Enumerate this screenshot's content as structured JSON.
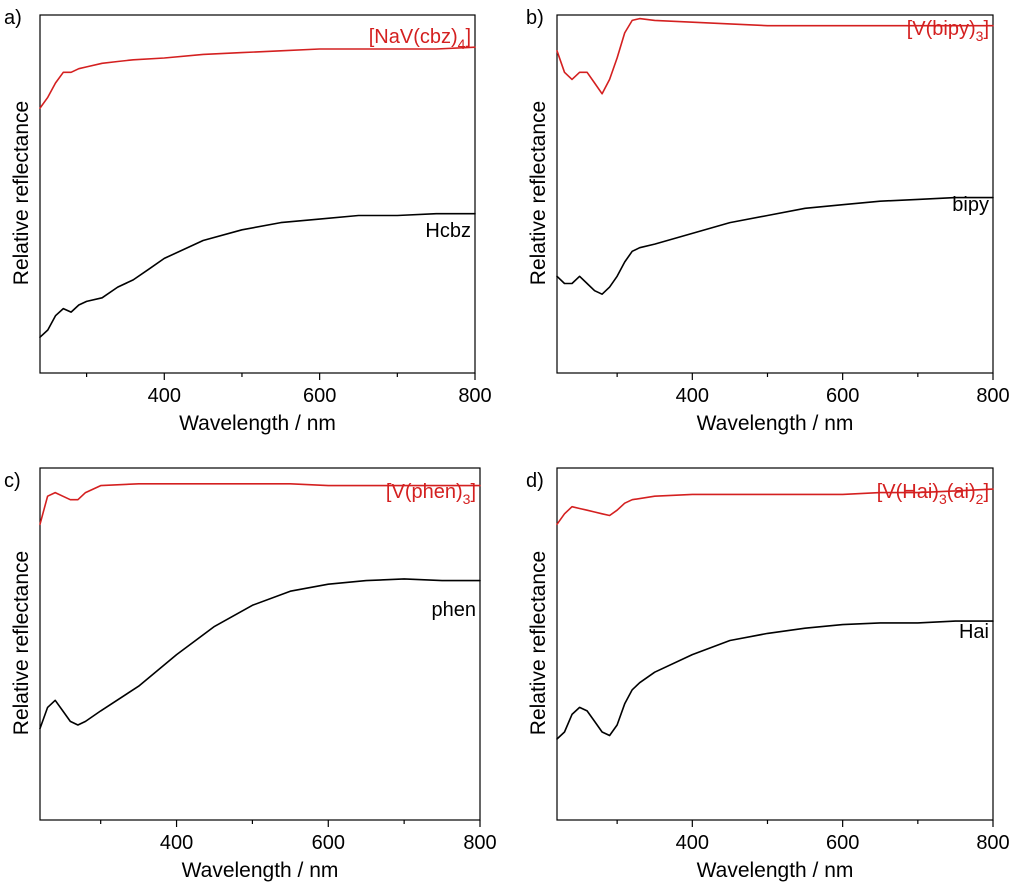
{
  "chart_data": [
    {
      "type": "line",
      "panel_label": "a)",
      "xlabel": "Wavelength / nm",
      "ylabel": "Relative reflectance",
      "xlim": [
        240,
        800
      ],
      "ylim": [
        0,
        1
      ],
      "xticks": [
        400,
        600,
        800
      ],
      "yticks_shown": false,
      "series": [
        {
          "name": "[NaV(cbz)4]",
          "label_main": "[NaV(cbz)",
          "label_sub": "4",
          "label_end": "]",
          "color": "#d42020",
          "x": [
            240,
            250,
            260,
            270,
            280,
            290,
            300,
            320,
            340,
            360,
            400,
            450,
            500,
            550,
            600,
            650,
            700,
            750,
            800
          ],
          "y": [
            0.74,
            0.77,
            0.81,
            0.84,
            0.84,
            0.85,
            0.855,
            0.865,
            0.87,
            0.875,
            0.88,
            0.89,
            0.895,
            0.9,
            0.905,
            0.905,
            0.905,
            0.905,
            0.91
          ]
        },
        {
          "name": "Hcbz",
          "label_main": "Hcbz",
          "label_sub": "",
          "label_end": "",
          "color": "#000000",
          "x": [
            240,
            250,
            260,
            270,
            280,
            290,
            300,
            320,
            340,
            360,
            380,
            400,
            450,
            500,
            550,
            600,
            650,
            700,
            750,
            800
          ],
          "y": [
            0.1,
            0.12,
            0.16,
            0.18,
            0.17,
            0.19,
            0.2,
            0.21,
            0.24,
            0.26,
            0.29,
            0.32,
            0.37,
            0.4,
            0.42,
            0.43,
            0.44,
            0.44,
            0.445,
            0.445
          ]
        }
      ]
    },
    {
      "type": "line",
      "panel_label": "b)",
      "xlabel": "Wavelength / nm",
      "ylabel": "Relative reflectance",
      "xlim": [
        220,
        800
      ],
      "ylim": [
        0,
        1
      ],
      "xticks": [
        400,
        600,
        800
      ],
      "yticks_shown": false,
      "series": [
        {
          "name": "[V(bipy)3]",
          "label_main": "[V(bipy)",
          "label_sub": "3",
          "label_end": "]",
          "color": "#d42020",
          "x": [
            220,
            230,
            240,
            250,
            260,
            270,
            280,
            290,
            300,
            310,
            320,
            330,
            350,
            400,
            450,
            500,
            600,
            700,
            800
          ],
          "y": [
            0.9,
            0.84,
            0.82,
            0.84,
            0.84,
            0.81,
            0.78,
            0.82,
            0.88,
            0.95,
            0.985,
            0.99,
            0.985,
            0.98,
            0.975,
            0.97,
            0.97,
            0.97,
            0.97
          ]
        },
        {
          "name": "bipy",
          "label_main": "bipy",
          "label_sub": "",
          "label_end": "",
          "color": "#000000",
          "x": [
            220,
            230,
            240,
            250,
            260,
            270,
            280,
            290,
            300,
            310,
            320,
            330,
            350,
            400,
            450,
            500,
            550,
            600,
            650,
            700,
            750,
            800
          ],
          "y": [
            0.27,
            0.25,
            0.25,
            0.27,
            0.25,
            0.23,
            0.22,
            0.24,
            0.27,
            0.31,
            0.34,
            0.35,
            0.36,
            0.39,
            0.42,
            0.44,
            0.46,
            0.47,
            0.48,
            0.485,
            0.49,
            0.49
          ]
        }
      ]
    },
    {
      "type": "line",
      "panel_label": "c)",
      "xlabel": "Wavelength / nm",
      "ylabel": "Relative reflectance",
      "xlim": [
        220,
        800
      ],
      "ylim": [
        0,
        1
      ],
      "xticks": [
        400,
        600,
        800
      ],
      "yticks_shown": false,
      "series": [
        {
          "name": "[V(phen)3]",
          "label_main": "[V(phen)",
          "label_sub": "3",
          "label_end": "]",
          "color": "#d42020",
          "x": [
            220,
            225,
            230,
            240,
            250,
            260,
            270,
            280,
            300,
            350,
            400,
            450,
            500,
            550,
            600,
            650,
            700,
            750,
            800
          ],
          "y": [
            0.84,
            0.88,
            0.92,
            0.93,
            0.92,
            0.91,
            0.91,
            0.93,
            0.95,
            0.955,
            0.955,
            0.955,
            0.955,
            0.955,
            0.95,
            0.95,
            0.95,
            0.95,
            0.95
          ]
        },
        {
          "name": "phen",
          "label_main": "phen",
          "label_sub": "",
          "label_end": "",
          "color": "#000000",
          "x": [
            220,
            230,
            240,
            250,
            260,
            270,
            280,
            300,
            350,
            400,
            450,
            500,
            550,
            600,
            650,
            700,
            750,
            800
          ],
          "y": [
            0.26,
            0.32,
            0.34,
            0.31,
            0.28,
            0.27,
            0.28,
            0.31,
            0.38,
            0.47,
            0.55,
            0.61,
            0.65,
            0.67,
            0.68,
            0.685,
            0.68,
            0.68
          ]
        }
      ]
    },
    {
      "type": "line",
      "panel_label": "d)",
      "xlabel": "Wavelength / nm",
      "ylabel": "Relative reflectance",
      "xlim": [
        220,
        800
      ],
      "ylim": [
        0,
        1
      ],
      "xticks": [
        400,
        600,
        800
      ],
      "yticks_shown": false,
      "series": [
        {
          "name": "[V(Hai)3(ai)2]",
          "label_main": "[V(Hai)",
          "label_sub": "3",
          "label_mid": "(ai)",
          "label_sub2": "2",
          "label_end": "]",
          "color": "#d42020",
          "x": [
            220,
            230,
            240,
            250,
            260,
            270,
            280,
            290,
            300,
            310,
            320,
            350,
            400,
            450,
            500,
            550,
            600,
            650,
            700,
            750,
            800
          ],
          "y": [
            0.84,
            0.87,
            0.89,
            0.885,
            0.88,
            0.875,
            0.87,
            0.865,
            0.88,
            0.9,
            0.91,
            0.92,
            0.925,
            0.925,
            0.925,
            0.925,
            0.925,
            0.93,
            0.93,
            0.935,
            0.94
          ]
        },
        {
          "name": "Hai",
          "label_main": "Hai",
          "label_sub": "",
          "label_end": "",
          "color": "#000000",
          "x": [
            220,
            230,
            240,
            250,
            260,
            270,
            280,
            290,
            300,
            310,
            320,
            330,
            350,
            400,
            450,
            500,
            550,
            600,
            650,
            700,
            750,
            800
          ],
          "y": [
            0.23,
            0.25,
            0.3,
            0.32,
            0.31,
            0.28,
            0.25,
            0.24,
            0.27,
            0.33,
            0.37,
            0.39,
            0.42,
            0.47,
            0.51,
            0.53,
            0.545,
            0.555,
            0.56,
            0.56,
            0.565,
            0.565
          ]
        }
      ]
    }
  ]
}
